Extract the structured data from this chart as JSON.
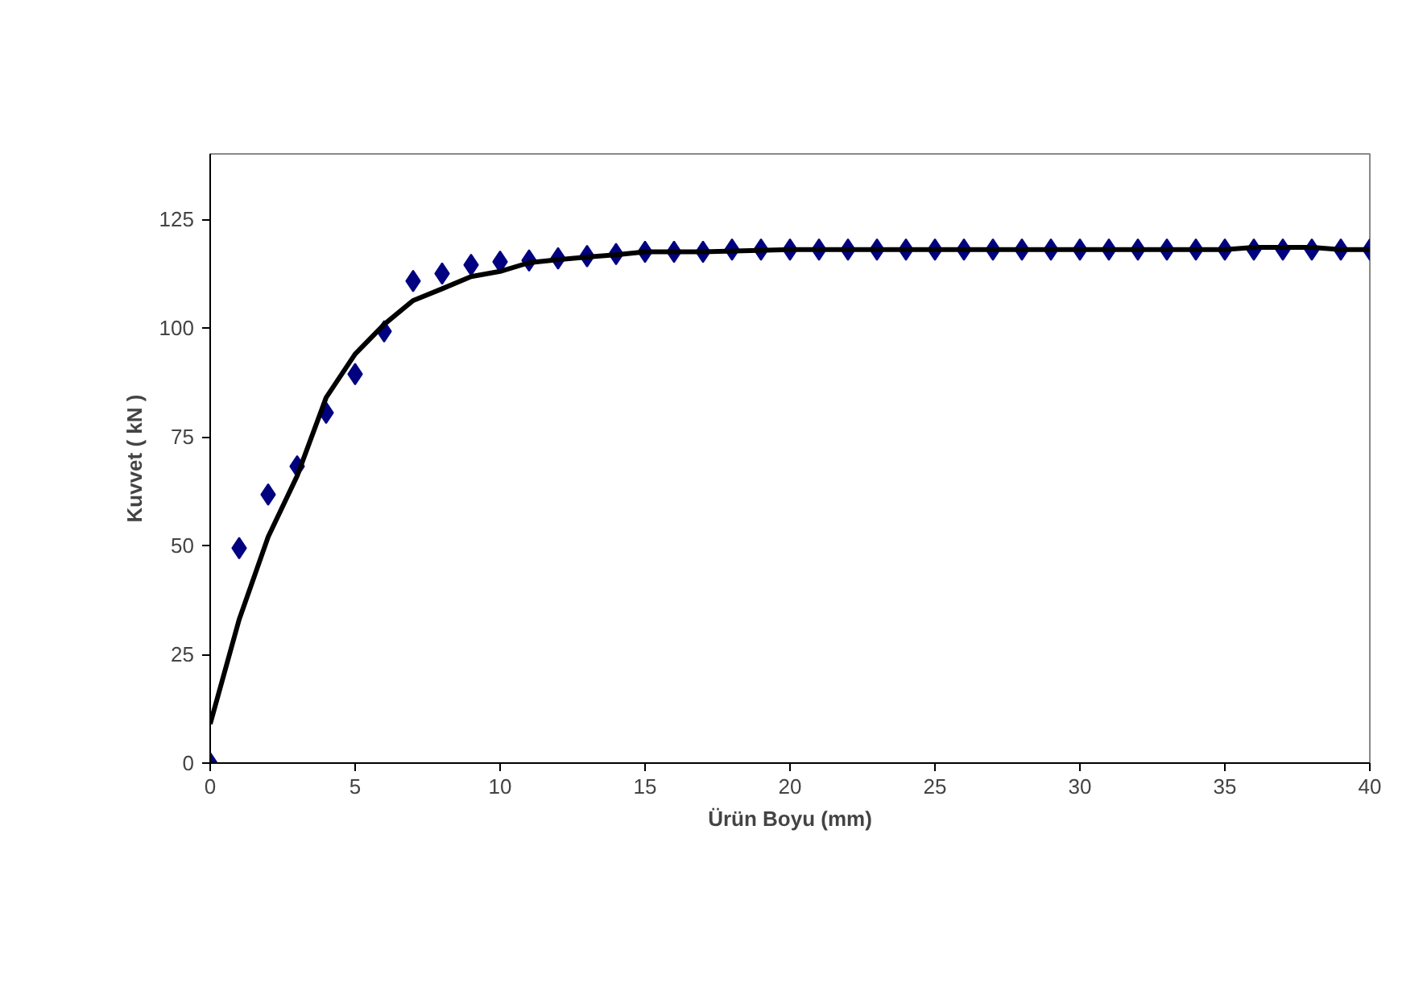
{
  "chart_data": {
    "type": "scatter",
    "xlabel": "Ürün Boyu (mm)",
    "ylabel": "Kuvvet ( kN )",
    "xlim": [
      0,
      40
    ],
    "xticks": [
      0,
      5,
      10,
      15,
      20,
      25,
      30,
      35,
      40
    ],
    "ylim": [
      0,
      140
    ],
    "yticks": [
      0,
      25,
      50,
      75,
      100,
      125
    ],
    "grid": false,
    "series": [
      {
        "marker": "diamond",
        "color": "#000080",
        "x": [
          0,
          1,
          2,
          3,
          4,
          5,
          6,
          7,
          8,
          9,
          10,
          11,
          12,
          13,
          14,
          15,
          16,
          17,
          18,
          19,
          20,
          21,
          22,
          23,
          24,
          25,
          26,
          27,
          28,
          29,
          30,
          31,
          32,
          33,
          34,
          35,
          36,
          37,
          38,
          39,
          40
        ],
        "values": [
          0,
          49.4,
          61.7,
          68.2,
          80.5,
          89.4,
          99.2,
          110.8,
          112.5,
          114.5,
          115.2,
          115.5,
          116,
          116.5,
          117,
          117.5,
          117.5,
          117.5,
          118,
          118,
          118,
          118,
          118,
          118,
          118,
          118,
          118,
          118,
          118,
          118,
          118,
          118,
          118,
          118,
          118,
          118,
          118,
          118,
          118,
          118,
          118
        ]
      },
      {
        "type": "line",
        "marker": "none",
        "line_style": "solid",
        "color": "#000000",
        "x": [
          0,
          1,
          2,
          3,
          4,
          5,
          6,
          7,
          8,
          9,
          10,
          11,
          12,
          13,
          14,
          15,
          17,
          20,
          25,
          30,
          35,
          36,
          37,
          38,
          39,
          40
        ],
        "values": [
          9,
          33,
          52,
          66,
          84,
          94,
          100.8,
          106.3,
          109,
          111.8,
          113,
          115,
          115.7,
          116.3,
          116.8,
          117.5,
          117.5,
          118,
          118,
          118,
          118,
          118.5,
          118.5,
          118.5,
          118,
          118
        ]
      }
    ]
  }
}
